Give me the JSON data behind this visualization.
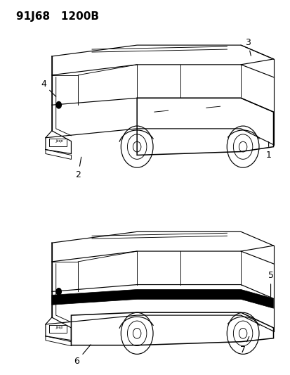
{
  "header_text": "91J68   1200B",
  "background_color": "#ffffff",
  "line_color": "#000000",
  "header_fontsize": 11,
  "label_fontsize": 9,
  "lw": 0.85,
  "lw2": 0.65
}
